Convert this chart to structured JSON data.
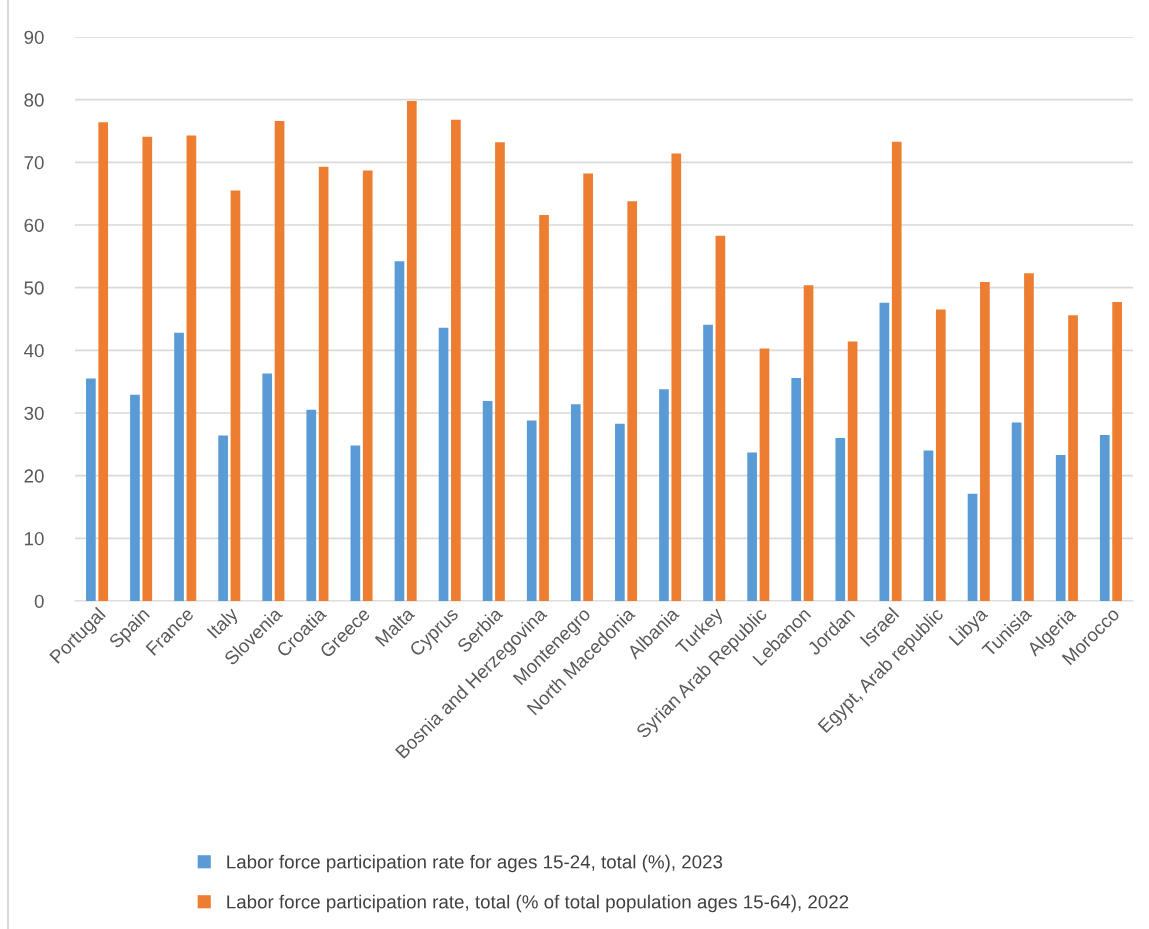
{
  "chart_data": {
    "type": "bar",
    "categories": [
      "Portugal",
      "Spain",
      "France",
      "Italy",
      "Slovenia",
      "Croatia",
      "Greece",
      "Malta",
      "Cyprus",
      "Serbia",
      "Bosnia and Herzegovina",
      "Montenegro",
      "North Macedonia",
      "Albania",
      "Turkey",
      "Syrian Arab Republic",
      "Lebanon",
      "Jordan",
      "Israel",
      "Egypt, Arab republic",
      "Libya",
      "Tunisia",
      "Algeria",
      "Morocco"
    ],
    "series": [
      {
        "name": "Labor force participation rate for ages 15-24, total (%), 2023",
        "color": "#5b9bd5",
        "values": [
          35.5,
          32.9,
          42.8,
          26.4,
          36.3,
          30.5,
          24.8,
          54.2,
          43.6,
          31.9,
          28.8,
          31.4,
          28.3,
          33.8,
          44.1,
          23.7,
          35.6,
          26.0,
          47.6,
          24.0,
          17.1,
          28.5,
          23.3,
          26.5
        ]
      },
      {
        "name": "Labor force participation rate, total (% of total population ages 15-64), 2022",
        "color": "#ed7d31",
        "values": [
          76.4,
          74.1,
          74.3,
          65.5,
          76.6,
          69.3,
          68.7,
          79.8,
          76.8,
          73.2,
          61.6,
          68.2,
          63.8,
          71.4,
          58.3,
          40.3,
          50.4,
          41.4,
          73.3,
          46.5,
          50.9,
          52.3,
          45.6,
          47.7
        ]
      }
    ],
    "ylim": [
      0,
      90
    ],
    "yticks": [
      0,
      10,
      20,
      30,
      40,
      50,
      60,
      70,
      80,
      90
    ],
    "grid": "y",
    "legend": "bottom"
  }
}
